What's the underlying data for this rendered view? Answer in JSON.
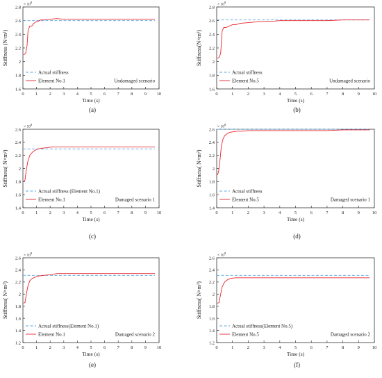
{
  "colors": {
    "actual_line": "#5aa8e0",
    "element_line": "#e8242a",
    "axis": "#333333"
  },
  "chart_data": [
    {
      "type": "line",
      "panel_label": "(a)",
      "multiplier": "10",
      "multiplier_exp": "8",
      "ylabel": "Stiffness (N·m²)",
      "xlabel": "Time (s)",
      "xlim": [
        0,
        10
      ],
      "ylim": [
        1.6,
        2.8
      ],
      "xticks": [
        "0",
        "1",
        "2",
        "3",
        "4",
        "5",
        "6",
        "7",
        "8",
        "9",
        "10"
      ],
      "yticks": [
        "1.6",
        "1.8",
        "2",
        "2.2",
        "2.4",
        "2.6",
        "2.8"
      ],
      "scenario": "Undamaged scenario",
      "legend_position": "bottom-left",
      "series": [
        {
          "name": "Actual stiffness",
          "style": "dashed",
          "color": "#5aa8e0",
          "x": [
            0,
            9.7
          ],
          "y": [
            2.6,
            2.6
          ]
        },
        {
          "name": "Element No.1",
          "style": "solid",
          "color": "#e8242a",
          "x": [
            0.05,
            0.12,
            0.2,
            0.3,
            0.38,
            0.5,
            0.65,
            0.8,
            0.95,
            1.1,
            1.3,
            1.6,
            2.0,
            2.5,
            3.0,
            3.5,
            4.0,
            5.0,
            6.0,
            7.0,
            8.0,
            9.0,
            9.7
          ],
          "y": [
            2.1,
            2.11,
            2.12,
            2.23,
            2.45,
            2.52,
            2.52,
            2.56,
            2.58,
            2.59,
            2.61,
            2.61,
            2.62,
            2.63,
            2.62,
            2.62,
            2.62,
            2.62,
            2.62,
            2.62,
            2.62,
            2.62,
            2.62
          ]
        }
      ]
    },
    {
      "type": "line",
      "panel_label": "(b)",
      "multiplier": "10",
      "multiplier_exp": "8",
      "ylabel": "Stiffness(N×m²)",
      "xlabel": "Time (s)",
      "xlim": [
        0,
        10
      ],
      "ylim": [
        1.6,
        2.8
      ],
      "xticks": [
        "0",
        "1",
        "2",
        "3",
        "4",
        "5",
        "6",
        "7",
        "8",
        "9",
        "10"
      ],
      "yticks": [
        "1.6",
        "1.8",
        "2",
        "2.2",
        "2.4",
        "2.6",
        "2.8"
      ],
      "scenario": "Undamaged scenario",
      "legend_position": "bottom-left",
      "series": [
        {
          "name": "Actual stiffness",
          "style": "dashed",
          "color": "#5aa8e0",
          "x": [
            0,
            9.7
          ],
          "y": [
            2.61,
            2.61
          ]
        },
        {
          "name": "Element No.5",
          "style": "solid",
          "color": "#e8242a",
          "x": [
            0.05,
            0.15,
            0.25,
            0.35,
            0.45,
            0.6,
            0.8,
            1.0,
            1.2,
            1.5,
            2.0,
            2.5,
            3.0,
            3.5,
            4.0,
            5.0,
            6.0,
            7.0,
            8.0,
            9.0,
            9.7
          ],
          "y": [
            2.05,
            2.06,
            2.12,
            2.45,
            2.5,
            2.5,
            2.52,
            2.54,
            2.54,
            2.56,
            2.57,
            2.58,
            2.59,
            2.59,
            2.6,
            2.6,
            2.6,
            2.6,
            2.61,
            2.61,
            2.61
          ]
        }
      ]
    },
    {
      "type": "line",
      "panel_label": "(c)",
      "multiplier": "10",
      "multiplier_exp": "8",
      "ylabel": "Stiffness( N×m²)",
      "xlabel": "Time (s)",
      "xlim": [
        0,
        10
      ],
      "ylim": [
        1.4,
        2.6
      ],
      "xticks": [
        "0",
        "1",
        "2",
        "3",
        "4",
        "5",
        "6",
        "7",
        "8",
        "9",
        "10"
      ],
      "yticks": [
        "1.4",
        "1.6",
        "1.8",
        "2",
        "2.2",
        "2.4",
        "2.6"
      ],
      "scenario": "Damaged scenario 1",
      "legend_position": "bottom-left",
      "series": [
        {
          "name": "Actual stiffness (Element No.1)",
          "style": "dashed",
          "color": "#5aa8e0",
          "x": [
            0,
            9.7
          ],
          "y": [
            2.3,
            2.3
          ]
        },
        {
          "name": "Element No.1",
          "style": "solid",
          "color": "#e8242a",
          "x": [
            0.05,
            0.15,
            0.25,
            0.35,
            0.5,
            0.7,
            0.9,
            1.1,
            1.4,
            1.8,
            2.2,
            2.6,
            3.0,
            4.0,
            5.0,
            6.0,
            7.0,
            8.0,
            9.0,
            9.7
          ],
          "y": [
            1.8,
            1.82,
            1.98,
            2.1,
            2.2,
            2.25,
            2.28,
            2.3,
            2.31,
            2.32,
            2.33,
            2.33,
            2.33,
            2.33,
            2.33,
            2.33,
            2.33,
            2.33,
            2.33,
            2.33
          ]
        }
      ]
    },
    {
      "type": "line",
      "panel_label": "(d)",
      "multiplier": "10",
      "multiplier_exp": "8",
      "ylabel": "Stiffness( N×m²)",
      "xlabel": "Time (s)",
      "xlim": [
        0,
        10
      ],
      "ylim": [
        1.4,
        2.6
      ],
      "xticks": [
        "0",
        "1",
        "2",
        "3",
        "4",
        "5",
        "6",
        "7",
        "8",
        "9",
        "10"
      ],
      "yticks": [
        "1.4",
        "1.6",
        "1.8",
        "2",
        "2.2",
        "2.4",
        "2.6"
      ],
      "scenario": "Damaged scenario 1",
      "legend_position": "bottom-left",
      "series": [
        {
          "name": "Actual stiffness",
          "style": "dashed",
          "color": "#5aa8e0",
          "x": [
            0,
            9.7
          ],
          "y": [
            2.6,
            2.6
          ]
        },
        {
          "name": "Element No.5",
          "style": "solid",
          "color": "#e8242a",
          "x": [
            0.05,
            0.12,
            0.2,
            0.3,
            0.4,
            0.5,
            0.65,
            0.8,
            1.0,
            1.3,
            1.6,
            2.0,
            3.0,
            4.0,
            5.0,
            6.0,
            7.0,
            8.0,
            9.0,
            9.7
          ],
          "y": [
            1.9,
            1.95,
            2.1,
            2.35,
            2.45,
            2.5,
            2.53,
            2.55,
            2.56,
            2.57,
            2.57,
            2.58,
            2.58,
            2.58,
            2.58,
            2.58,
            2.58,
            2.59,
            2.59,
            2.59
          ]
        }
      ]
    },
    {
      "type": "line",
      "panel_label": "(e)",
      "multiplier": "10",
      "multiplier_exp": "8",
      "ylabel": "Stiffness( N×m²)",
      "xlabel": "Time (s)",
      "xlim": [
        0,
        10
      ],
      "ylim": [
        1.2,
        2.6
      ],
      "xticks": [
        "0",
        "1",
        "2",
        "3",
        "4",
        "5",
        "6",
        "7",
        "8",
        "9",
        "10"
      ],
      "yticks": [
        "1.2",
        "1.4",
        "1.6",
        "1.8",
        "2",
        "2.2",
        "2.4",
        "2.6"
      ],
      "scenario": "Damaged scenario 2",
      "legend_position": "bottom-left",
      "series": [
        {
          "name": "Actual stiffness(Element No.1)",
          "style": "dashed",
          "color": "#5aa8e0",
          "x": [
            0,
            9.7
          ],
          "y": [
            2.31,
            2.31
          ]
        },
        {
          "name": "Element No.1",
          "style": "solid",
          "color": "#e8242a",
          "x": [
            0.05,
            0.15,
            0.25,
            0.35,
            0.5,
            0.7,
            0.9,
            1.2,
            1.5,
            2.0,
            2.5,
            3.0,
            4.0,
            5.0,
            6.0,
            7.0,
            8.0,
            9.0,
            9.7
          ],
          "y": [
            1.85,
            1.86,
            2.0,
            2.12,
            2.22,
            2.26,
            2.28,
            2.3,
            2.31,
            2.32,
            2.34,
            2.34,
            2.34,
            2.34,
            2.34,
            2.34,
            2.34,
            2.34,
            2.34
          ]
        }
      ]
    },
    {
      "type": "line",
      "panel_label": "(f)",
      "multiplier": "10",
      "multiplier_exp": "8",
      "ylabel": "Stiffness( N×m²)",
      "xlabel": "Time (s)",
      "xlim": [
        0,
        10
      ],
      "ylim": [
        1.2,
        2.6
      ],
      "xticks": [
        "0",
        "1",
        "2",
        "3",
        "4",
        "5",
        "6",
        "7",
        "8",
        "9",
        "10"
      ],
      "yticks": [
        "1.2",
        "1.4",
        "1.6",
        "1.8",
        "2",
        "2.2",
        "2.4",
        "2.6"
      ],
      "scenario": "Damaged scenario 2",
      "legend_position": "bottom-left",
      "series": [
        {
          "name": "Actual stiffness(Element No.5)",
          "style": "dashed",
          "color": "#5aa8e0",
          "x": [
            0,
            9.7
          ],
          "y": [
            2.31,
            2.31
          ]
        },
        {
          "name": "Element No.5",
          "style": "solid",
          "color": "#e8242a",
          "x": [
            0.05,
            0.15,
            0.25,
            0.35,
            0.5,
            0.7,
            0.9,
            1.2,
            1.5,
            2.0,
            3.0,
            4.0,
            5.0,
            6.0,
            7.0,
            8.0,
            9.0,
            9.7
          ],
          "y": [
            1.85,
            1.86,
            2.0,
            2.12,
            2.2,
            2.24,
            2.26,
            2.27,
            2.27,
            2.27,
            2.27,
            2.27,
            2.27,
            2.27,
            2.27,
            2.27,
            2.27,
            2.27
          ]
        }
      ]
    }
  ]
}
